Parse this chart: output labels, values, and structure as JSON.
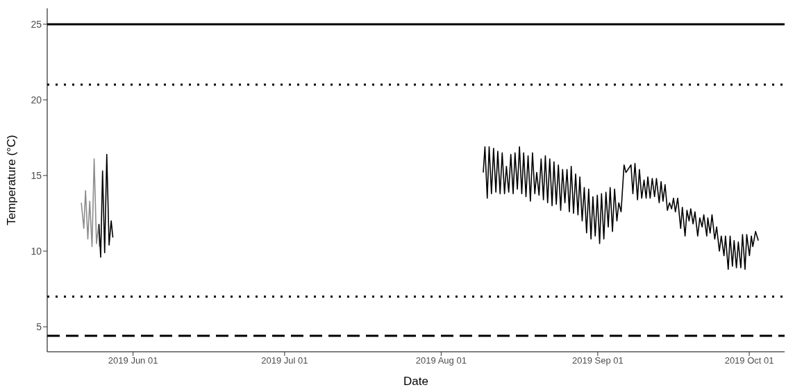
{
  "chart_data": {
    "type": "line",
    "xlabel": "Date",
    "ylabel": "Temperature (°C)",
    "xlim": [
      "2019-05-15",
      "2019-10-08"
    ],
    "xticks": [
      {
        "value": "2019-06-01",
        "label": "2019 Jun 01"
      },
      {
        "value": "2019-07-01",
        "label": "2019 Jul 01"
      },
      {
        "value": "2019-08-01",
        "label": "2019 Aug 01"
      },
      {
        "value": "2019-09-01",
        "label": "2019 Sep 01"
      },
      {
        "value": "2019-10-01",
        "label": "2019 Oct 01"
      }
    ],
    "ylim": [
      3.35,
      26.05
    ],
    "yticks": [
      5,
      10,
      15,
      20,
      25
    ],
    "legend": false,
    "line_style": "solid",
    "marker": "none",
    "ref_lines": [
      {
        "axis": "y",
        "value": 25,
        "color": "#000000",
        "line_style": "solid"
      },
      {
        "axis": "y",
        "value": 21,
        "color": "#000000",
        "line_style": "dotted"
      },
      {
        "axis": "y",
        "value": 7,
        "color": "#000000",
        "line_style": "dotted"
      },
      {
        "axis": "y",
        "value": 4.4,
        "color": "#000000",
        "line_style": "dashed"
      }
    ],
    "series": [
      {
        "color": "#8c8c8c",
        "x": [
          "2019-05-21T18:00",
          "2019-05-22T06:00",
          "2019-05-22T14:00",
          "2019-05-23T01:00",
          "2019-05-23T10:00",
          "2019-05-23T21:00",
          "2019-05-24T07:00",
          "2019-05-24T18:00",
          "2019-05-25T04:00",
          "2019-05-25T08:00"
        ],
        "values": [
          13.2,
          11.5,
          14.0,
          10.8,
          13.3,
          10.3,
          16.1,
          10.5,
          11.7,
          10.3
        ]
      },
      {
        "color": "#000000",
        "x": [
          "2019-05-25T06:00",
          "2019-05-25T14:00",
          "2019-05-25T23:00",
          "2019-05-26T09:00",
          "2019-05-26T19:00",
          "2019-05-27T06:00",
          "2019-05-27T16:00",
          "2019-05-28T00:00",
          "2019-07-01T00:00",
          "2019-08-09T08:00",
          "2019-08-09T16:00",
          "2019-08-10T03:00",
          "2019-08-10T12:00",
          "2019-08-10T23:00",
          "2019-08-11T09:00",
          "2019-08-11T20:00",
          "2019-08-12T05:00",
          "2019-08-12T16:00",
          "2019-08-13T02:00",
          "2019-08-13T13:00",
          "2019-08-13T22:00",
          "2019-08-14T09:00",
          "2019-08-14T19:00",
          "2019-08-15T06:00",
          "2019-08-15T15:00",
          "2019-08-16T02:00",
          "2019-08-16T12:00",
          "2019-08-16T23:00",
          "2019-08-17T08:00",
          "2019-08-17T19:00",
          "2019-08-18T05:00",
          "2019-08-18T16:00",
          "2019-08-19T02:00",
          "2019-08-19T13:00",
          "2019-08-19T22:00",
          "2019-08-20T09:00",
          "2019-08-20T19:00",
          "2019-08-21T06:00",
          "2019-08-21T15:00",
          "2019-08-22T02:00",
          "2019-08-22T12:00",
          "2019-08-22T23:00",
          "2019-08-23T08:00",
          "2019-08-23T19:00",
          "2019-08-24T05:00",
          "2019-08-24T16:00",
          "2019-08-25T01:00",
          "2019-08-25T12:00",
          "2019-08-25T22:00",
          "2019-08-26T09:00",
          "2019-08-26T18:00",
          "2019-08-27T05:00",
          "2019-08-27T15:00",
          "2019-08-28T02:00",
          "2019-08-28T11:00",
          "2019-08-28T22:00",
          "2019-08-29T08:00",
          "2019-08-29T19:00",
          "2019-08-30T05:00",
          "2019-08-30T16:00",
          "2019-08-31T01:00",
          "2019-08-31T12:00",
          "2019-08-31T22:00",
          "2019-09-01T09:00",
          "2019-09-01T18:00",
          "2019-09-02T05:00",
          "2019-09-02T15:00",
          "2019-09-03T02:00",
          "2019-09-03T11:00",
          "2019-09-03T22:00",
          "2019-09-04T08:00",
          "2019-09-04T19:00",
          "2019-09-05T04:00",
          "2019-09-05T15:00",
          "2019-09-06T05:00",
          "2019-09-06T14:00",
          "2019-09-07T14:00",
          "2019-09-07T23:00",
          "2019-09-08T09:00",
          "2019-09-08T21:00",
          "2019-09-09T06:00",
          "2019-09-09T17:00",
          "2019-09-10T04:00",
          "2019-09-10T14:00",
          "2019-09-10T22:00",
          "2019-09-11T09:00",
          "2019-09-11T19:00",
          "2019-09-12T06:00",
          "2019-09-12T15:00",
          "2019-09-13T04:00",
          "2019-09-13T13:00",
          "2019-09-13T22:00",
          "2019-09-14T08:00",
          "2019-09-14T19:00",
          "2019-09-15T05:00",
          "2019-09-15T15:00",
          "2019-09-16T00:00",
          "2019-09-16T09:00",
          "2019-09-16T20:00",
          "2019-09-17T10:00",
          "2019-09-17T18:00",
          "2019-09-18T07:00",
          "2019-09-18T16:00",
          "2019-09-19T02:00",
          "2019-09-19T10:00",
          "2019-09-19T21:00",
          "2019-09-20T06:00",
          "2019-09-20T19:00",
          "2019-09-21T05:00",
          "2019-09-21T16:00",
          "2019-09-22T00:00",
          "2019-09-22T14:00",
          "2019-09-22T19:00",
          "2019-09-23T06:00",
          "2019-09-23T15:00",
          "2019-09-24T04:00",
          "2019-09-24T13:00",
          "2019-09-25T02:00",
          "2019-09-25T11:00",
          "2019-09-26T00:00",
          "2019-09-26T07:00",
          "2019-09-26T20:00",
          "2019-09-27T05:00",
          "2019-09-27T16:00",
          "2019-09-28T00:00",
          "2019-09-28T11:00",
          "2019-09-28T20:00",
          "2019-09-29T08:00",
          "2019-09-29T16:00",
          "2019-09-30T04:00",
          "2019-09-30T12:00",
          "2019-10-01T01:00",
          "2019-10-01T10:00",
          "2019-10-01T17:00",
          "2019-10-02T06:00",
          "2019-10-02T19:00"
        ],
        "values": [
          11.8,
          9.6,
          15.3,
          9.9,
          16.4,
          10.4,
          12.0,
          10.9,
          null,
          15.2,
          16.9,
          13.5,
          16.9,
          13.8,
          16.8,
          13.9,
          16.6,
          13.8,
          16.5,
          13.8,
          15.6,
          13.9,
          16.4,
          13.8,
          16.5,
          14.1,
          16.9,
          13.8,
          16.5,
          13.6,
          16.3,
          13.3,
          16.5,
          13.8,
          15.2,
          13.7,
          16.1,
          13.4,
          16.3,
          13.2,
          16.1,
          13.0,
          15.9,
          13.1,
          15.7,
          12.7,
          15.4,
          13.2,
          15.4,
          12.6,
          15.6,
          12.5,
          15.1,
          12.4,
          14.9,
          12.0,
          14.2,
          11.2,
          14.1,
          10.8,
          13.6,
          11.0,
          13.7,
          10.5,
          13.8,
          10.8,
          13.9,
          11.6,
          14.2,
          11.3,
          14.1,
          12.0,
          13.2,
          12.6,
          15.7,
          15.2,
          15.7,
          13.8,
          15.8,
          13.4,
          15.4,
          13.5,
          14.7,
          13.5,
          14.9,
          13.5,
          14.8,
          13.6,
          14.8,
          13.2,
          14.6,
          13.3,
          14.4,
          12.7,
          13.2,
          12.8,
          13.5,
          12.6,
          13.5,
          11.5,
          12.9,
          11.0,
          12.7,
          12.0,
          12.8,
          11.8,
          12.6,
          11.0,
          12.2,
          11.6,
          12.4,
          11.0,
          12.2,
          11.2,
          12.4,
          10.8,
          11.6,
          10.0,
          11.0,
          9.7,
          11.0,
          8.8,
          11.0,
          9.0,
          10.7,
          8.9,
          10.6,
          8.9,
          11.1,
          8.8,
          11.1,
          9.7,
          11.0,
          10.3,
          11.3,
          10.7
        ]
      }
    ]
  }
}
